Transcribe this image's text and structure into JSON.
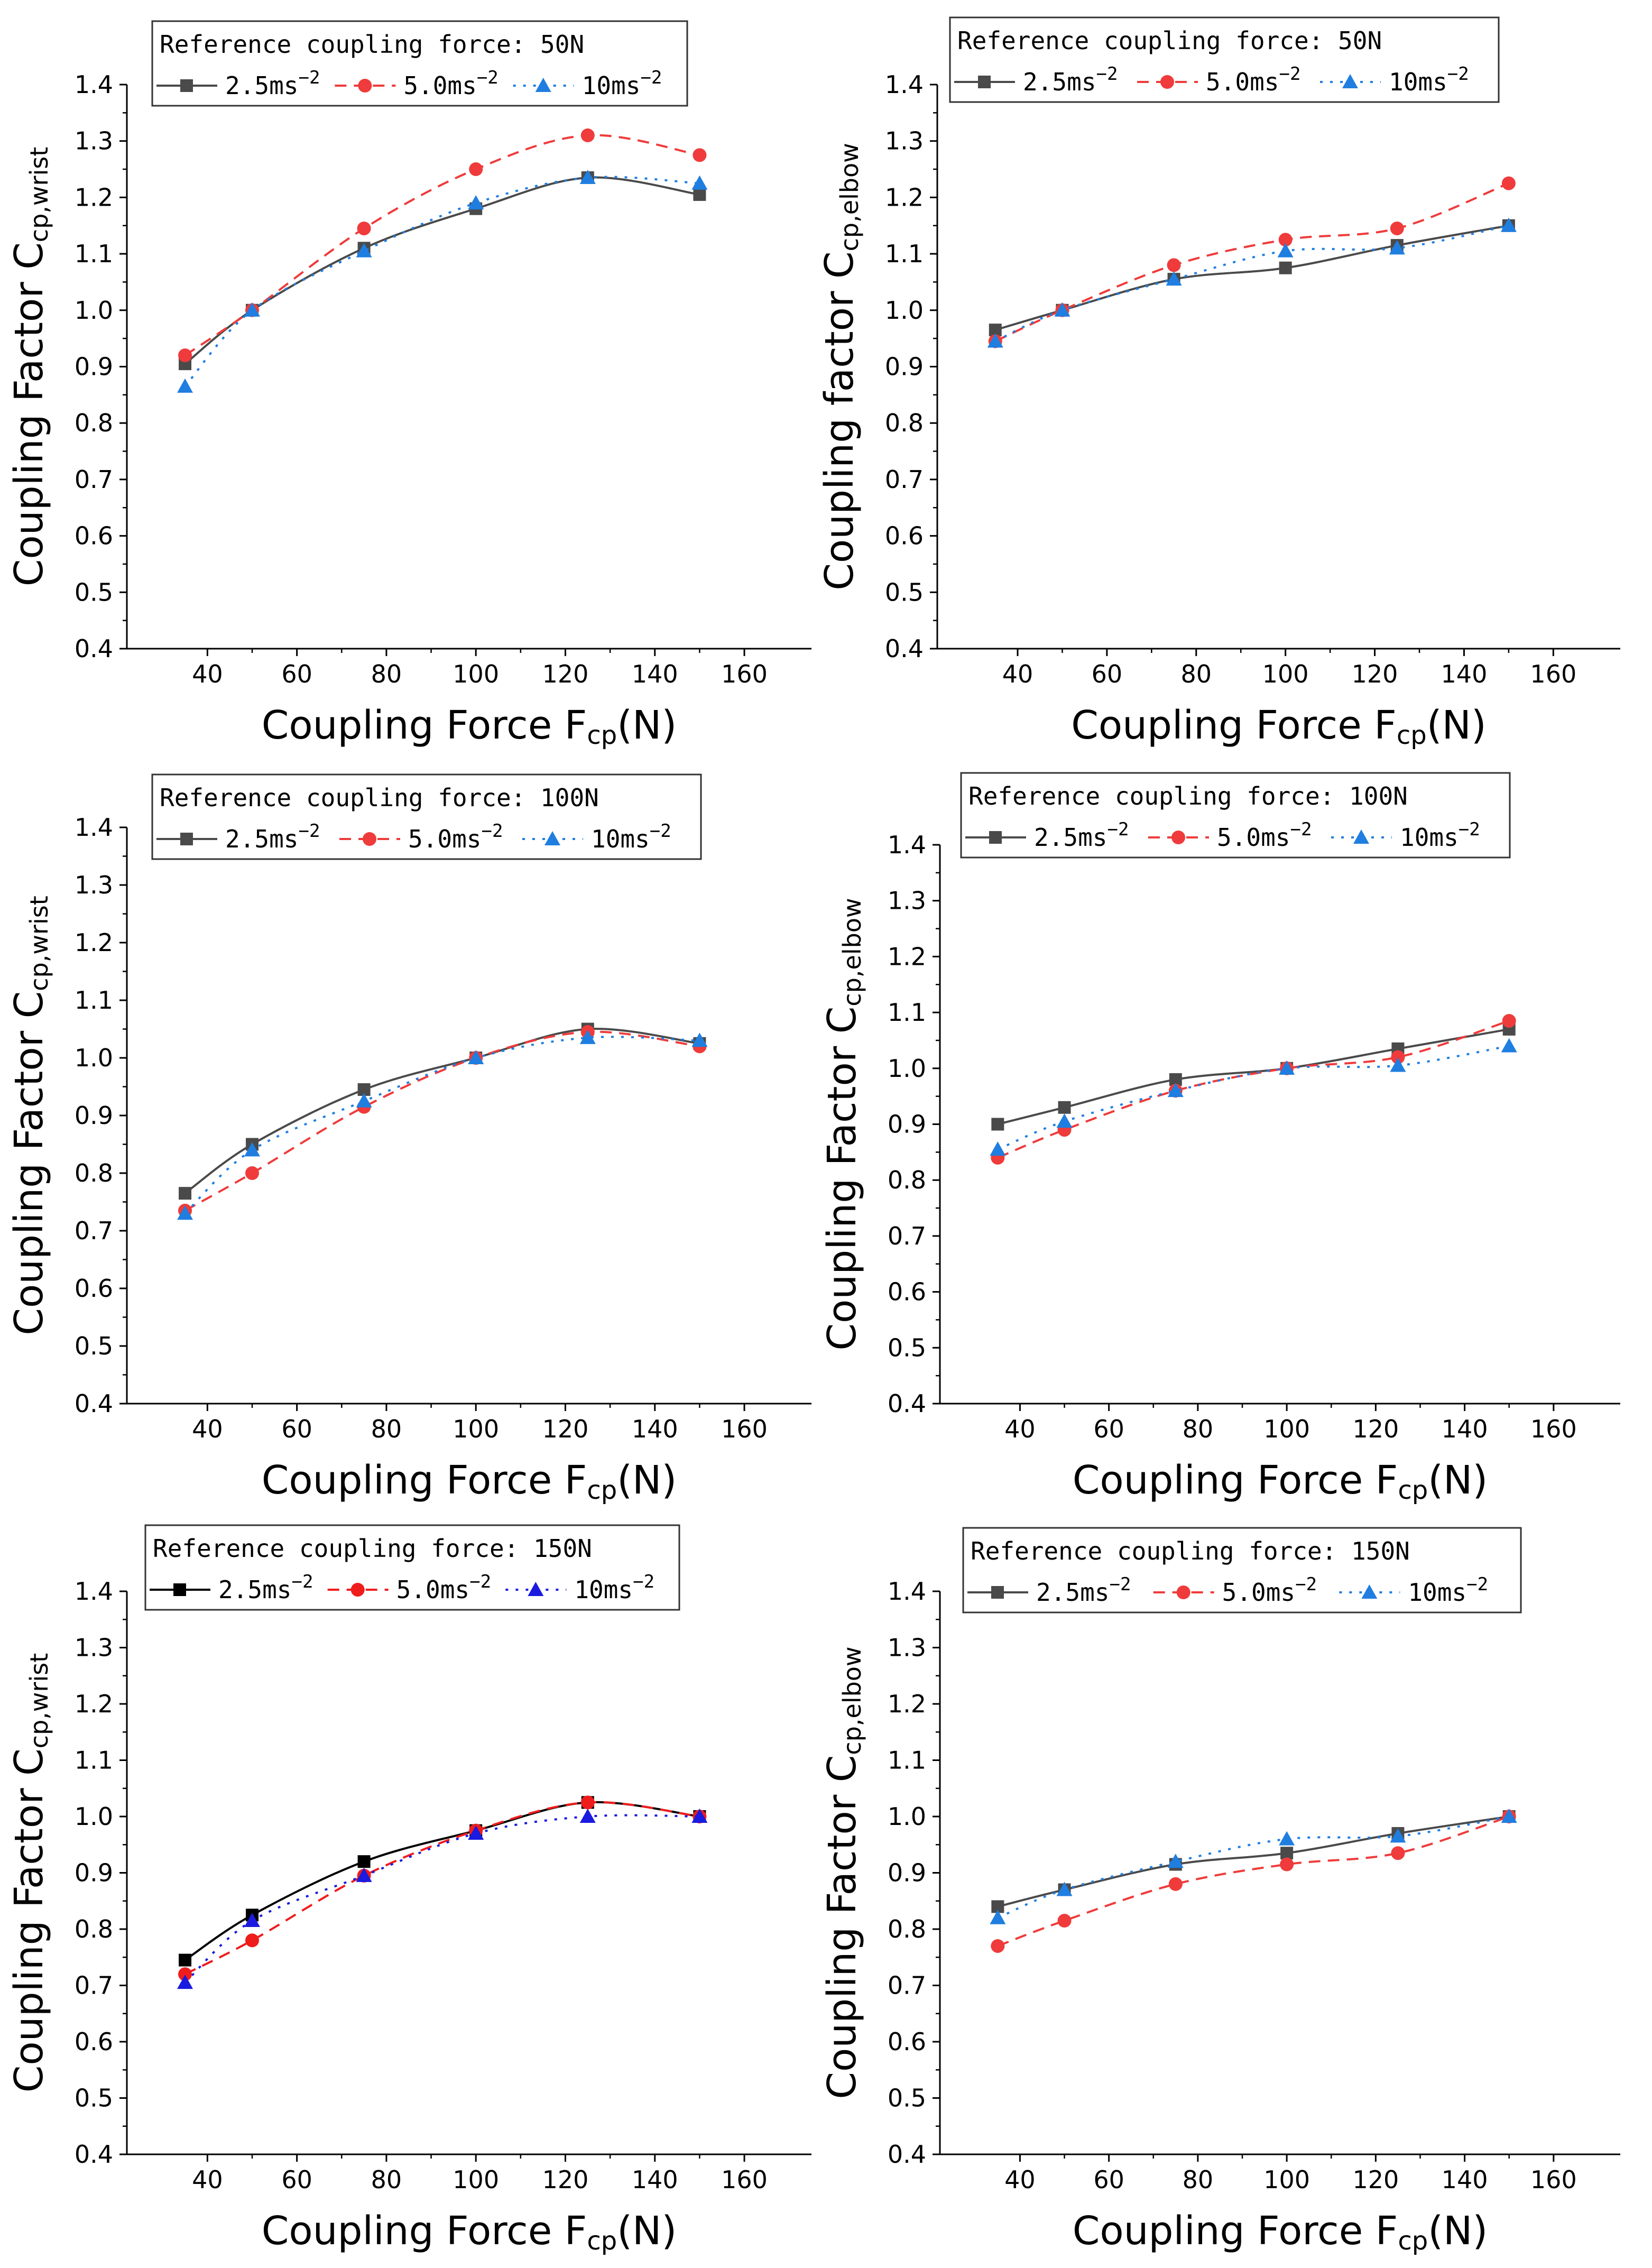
{
  "chart_data": [
    {
      "type": "line",
      "panel": "wrist-ref-50",
      "legend_title": "Reference coupling force: 50N",
      "xlabel_main": "Coupling Force F",
      "xlabel_sub": "cp",
      "xlabel_end": "(N)",
      "ylabel_main": "Coupling Factor C",
      "ylabel_sub": "cp,wrist",
      "xticks": [
        "40",
        "60",
        "80",
        "100",
        "120",
        "140",
        "160"
      ],
      "yticks": [
        "0.4",
        "0.5",
        "0.6",
        "0.7",
        "0.8",
        "0.9",
        "1.0",
        "1.1",
        "1.2",
        "1.3",
        "1.4"
      ],
      "xlim": [
        22,
        175
      ],
      "ylim": [
        0.4,
        1.4
      ],
      "x": [
        35,
        50,
        75,
        100,
        125,
        150
      ],
      "series": [
        {
          "name": "2.5ms",
          "sup": "−2",
          "color": "#4a4a4a",
          "marker": "square",
          "dash": "",
          "values": [
            0.905,
            1.0,
            1.11,
            1.18,
            1.235,
            1.205
          ]
        },
        {
          "name": "5.0ms",
          "sup": "−2",
          "color": "#ef3b3b",
          "marker": "circle",
          "dash": "22,14",
          "values": [
            0.92,
            1.0,
            1.145,
            1.25,
            1.31,
            1.275
          ]
        },
        {
          "name": "10ms",
          "sup": "−2",
          "color": "#1f7ee0",
          "marker": "triangle",
          "dash": "5,14",
          "values": [
            0.865,
            1.0,
            1.105,
            1.19,
            1.235,
            1.225
          ]
        }
      ]
    },
    {
      "type": "line",
      "panel": "elbow-ref-50",
      "legend_title": "Reference coupling force: 50N",
      "xlabel_main": "Coupling Force F",
      "xlabel_sub": "cp",
      "xlabel_end": "(N)",
      "ylabel_main": "Coupling factor C",
      "ylabel_sub": "cp,elbow",
      "xticks": [
        "40",
        "60",
        "80",
        "100",
        "120",
        "140",
        "160"
      ],
      "yticks": [
        "0.4",
        "0.5",
        "0.6",
        "0.7",
        "0.8",
        "0.9",
        "1.0",
        "1.1",
        "1.2",
        "1.3",
        "1.4"
      ],
      "xlim": [
        22,
        175
      ],
      "ylim": [
        0.4,
        1.4
      ],
      "x": [
        35,
        50,
        75,
        100,
        125,
        150
      ],
      "series": [
        {
          "name": "2.5ms",
          "sup": "−2",
          "color": "#4a4a4a",
          "marker": "square",
          "dash": "",
          "values": [
            0.965,
            1.0,
            1.055,
            1.075,
            1.115,
            1.15
          ]
        },
        {
          "name": "5.0ms",
          "sup": "−2",
          "color": "#ef3b3b",
          "marker": "circle",
          "dash": "22,14",
          "values": [
            0.945,
            1.0,
            1.08,
            1.125,
            1.145,
            1.225
          ]
        },
        {
          "name": "10ms",
          "sup": "−2",
          "color": "#1f7ee0",
          "marker": "triangle",
          "dash": "5,14",
          "values": [
            0.945,
            1.0,
            1.055,
            1.105,
            1.11,
            1.15
          ]
        }
      ]
    },
    {
      "type": "line",
      "panel": "wrist-ref-100",
      "legend_title": "Reference coupling force: 100N",
      "xlabel_main": "Coupling Force F",
      "xlabel_sub": "cp",
      "xlabel_end": "(N)",
      "ylabel_main": "Coupling Factor C",
      "ylabel_sub": "cp,wrist",
      "xticks": [
        "40",
        "60",
        "80",
        "100",
        "120",
        "140",
        "160"
      ],
      "yticks": [
        "0.4",
        "0.5",
        "0.6",
        "0.7",
        "0.8",
        "0.9",
        "1.0",
        "1.1",
        "1.2",
        "1.3",
        "1.4"
      ],
      "xlim": [
        22,
        175
      ],
      "ylim": [
        0.4,
        1.4
      ],
      "x": [
        35,
        50,
        75,
        100,
        125,
        150
      ],
      "series": [
        {
          "name": "2.5ms",
          "sup": "−2",
          "color": "#4a4a4a",
          "marker": "square",
          "dash": "",
          "values": [
            0.765,
            0.85,
            0.945,
            1.0,
            1.05,
            1.025
          ]
        },
        {
          "name": "5.0ms",
          "sup": "−2",
          "color": "#ef3b3b",
          "marker": "circle",
          "dash": "22,14",
          "values": [
            0.735,
            0.8,
            0.915,
            1.0,
            1.045,
            1.02
          ]
        },
        {
          "name": "10ms",
          "sup": "−2",
          "color": "#1f7ee0",
          "marker": "triangle",
          "dash": "5,14",
          "values": [
            0.73,
            0.84,
            0.925,
            1.0,
            1.035,
            1.03
          ]
        }
      ]
    },
    {
      "type": "line",
      "panel": "elbow-ref-100",
      "legend_title": "Reference coupling force: 100N",
      "xlabel_main": "Coupling Force F",
      "xlabel_sub": "cp",
      "xlabel_end": "(N)",
      "ylabel_main": "Coupling Factor C",
      "ylabel_sub": "cp,elbow",
      "xticks": [
        "40",
        "60",
        "80",
        "100",
        "120",
        "140",
        "160"
      ],
      "yticks": [
        "0.4",
        "0.5",
        "0.6",
        "0.7",
        "0.8",
        "0.9",
        "1.0",
        "1.1",
        "1.2",
        "1.3",
        "1.4"
      ],
      "xlim": [
        22,
        175
      ],
      "ylim": [
        0.4,
        1.4
      ],
      "x": [
        35,
        50,
        75,
        100,
        125,
        150
      ],
      "series": [
        {
          "name": "2.5ms",
          "sup": "−2",
          "color": "#4a4a4a",
          "marker": "square",
          "dash": "",
          "values": [
            0.9,
            0.93,
            0.98,
            1.0,
            1.035,
            1.07
          ]
        },
        {
          "name": "5.0ms",
          "sup": "−2",
          "color": "#ef3b3b",
          "marker": "circle",
          "dash": "22,14",
          "values": [
            0.84,
            0.89,
            0.96,
            1.0,
            1.02,
            1.085
          ]
        },
        {
          "name": "10ms",
          "sup": "−2",
          "color": "#1f7ee0",
          "marker": "triangle",
          "dash": "5,14",
          "values": [
            0.855,
            0.905,
            0.96,
            1.0,
            1.005,
            1.04
          ]
        }
      ]
    },
    {
      "type": "line",
      "panel": "wrist-ref-150",
      "legend_title": "Reference coupling force: 150N",
      "xlabel_main": "Coupling Force F",
      "xlabel_sub": "cp",
      "xlabel_end": "(N)",
      "ylabel_main": "Coupling Factor C",
      "ylabel_sub": "cp,wrist",
      "xticks": [
        "40",
        "60",
        "80",
        "100",
        "120",
        "140",
        "160"
      ],
      "yticks": [
        "0.4",
        "0.5",
        "0.6",
        "0.7",
        "0.8",
        "0.9",
        "1.0",
        "1.1",
        "1.2",
        "1.3",
        "1.4"
      ],
      "xlim": [
        22,
        175
      ],
      "ylim": [
        0.4,
        1.4
      ],
      "x": [
        35,
        50,
        75,
        100,
        125,
        150
      ],
      "series": [
        {
          "name": "2.5ms",
          "sup": "−2",
          "color": "#000000",
          "marker": "square",
          "dash": "",
          "values": [
            0.745,
            0.825,
            0.92,
            0.975,
            1.025,
            1.0
          ]
        },
        {
          "name": "5.0ms",
          "sup": "−2",
          "color": "#ef1c1c",
          "marker": "circle",
          "dash": "22,14",
          "values": [
            0.72,
            0.78,
            0.895,
            0.975,
            1.025,
            1.0
          ]
        },
        {
          "name": "10ms",
          "sup": "−2",
          "color": "#1a1ae0",
          "marker": "triangle",
          "dash": "5,14",
          "values": [
            0.705,
            0.815,
            0.895,
            0.97,
            1.0,
            1.0
          ]
        }
      ]
    },
    {
      "type": "line",
      "panel": "elbow-ref-150",
      "legend_title": "Reference coupling force: 150N",
      "xlabel_main": "Coupling Force F",
      "xlabel_sub": "cp",
      "xlabel_end": "(N)",
      "ylabel_main": "Coupling Factor C",
      "ylabel_sub": "cp,elbow",
      "xticks": [
        "40",
        "60",
        "80",
        "100",
        "120",
        "140",
        "160"
      ],
      "yticks": [
        "0.4",
        "0.5",
        "0.6",
        "0.7",
        "0.8",
        "0.9",
        "1.0",
        "1.1",
        "1.2",
        "1.3",
        "1.4"
      ],
      "xlim": [
        22,
        175
      ],
      "ylim": [
        0.4,
        1.4
      ],
      "x": [
        35,
        50,
        75,
        100,
        125,
        150
      ],
      "series": [
        {
          "name": "2.5ms",
          "sup": "−2",
          "color": "#4a4a4a",
          "marker": "square",
          "dash": "",
          "values": [
            0.84,
            0.87,
            0.915,
            0.935,
            0.97,
            1.0
          ]
        },
        {
          "name": "5.0ms",
          "sup": "−2",
          "color": "#ef3b3b",
          "marker": "circle",
          "dash": "22,14",
          "values": [
            0.77,
            0.815,
            0.88,
            0.915,
            0.935,
            1.0
          ]
        },
        {
          "name": "10ms",
          "sup": "−2",
          "color": "#1f7ee0",
          "marker": "triangle",
          "dash": "5,14",
          "values": [
            0.82,
            0.87,
            0.92,
            0.96,
            0.965,
            1.0
          ]
        }
      ]
    }
  ]
}
